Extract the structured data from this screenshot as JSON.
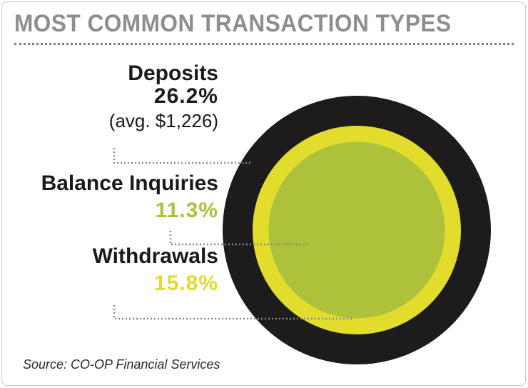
{
  "chart_data": {
    "type": "pie",
    "title": "MOST COMMON TRANSACTION TYPES",
    "style": "concentric circles",
    "categories": [
      "Deposits",
      "Balance Inquiries",
      "Withdrawals"
    ],
    "values": [
      26.2,
      11.3,
      15.8
    ],
    "value_unit": "%",
    "series": [
      {
        "name": "Deposits",
        "value": 26.2,
        "label": "26.2%",
        "note": "(avg. $1,226)",
        "color": "#1d1b1b"
      },
      {
        "name": "Balance Inquiries",
        "value": 11.3,
        "label": "11.3%",
        "color": "#adc13a"
      },
      {
        "name": "Withdrawals",
        "value": 15.8,
        "label": "15.8%",
        "color": "#e2dc2d"
      }
    ],
    "source": "Source: CO-OP Financial Services"
  },
  "colors": {
    "deposits": "#1d1b1b",
    "withdrawals": "#e2dc2d",
    "balance_inquiries": "#adc13a",
    "title": "#8e8e8e",
    "leader": "#8a8a8a"
  }
}
